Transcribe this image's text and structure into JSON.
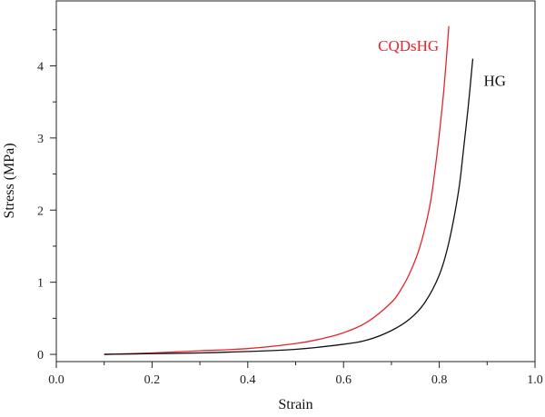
{
  "chart_data": {
    "type": "line",
    "title": "",
    "xlabel": "Strain",
    "ylabel": "Stress (MPa)",
    "xlim": [
      0.0,
      1.0
    ],
    "ylim": [
      -0.1,
      4.9
    ],
    "xticks": [
      "0.0",
      "0.2",
      "0.4",
      "0.6",
      "0.8",
      "1.0"
    ],
    "yticks": [
      "0",
      "1",
      "2",
      "3",
      "4"
    ],
    "grid": false,
    "legend": "inline labels at curve ends",
    "series": [
      {
        "name": "CQDsHG",
        "color": "#e8242b",
        "x": [
          0.1,
          0.2,
          0.3,
          0.4,
          0.5,
          0.55,
          0.6,
          0.65,
          0.7,
          0.72,
          0.74,
          0.76,
          0.78,
          0.79,
          0.8,
          0.81,
          0.82
        ],
        "y": [
          0.0,
          0.02,
          0.05,
          0.08,
          0.15,
          0.21,
          0.3,
          0.45,
          0.72,
          0.9,
          1.15,
          1.5,
          2.05,
          2.5,
          3.05,
          3.7,
          4.55
        ]
      },
      {
        "name": "HG",
        "color": "#111111",
        "x": [
          0.1,
          0.2,
          0.3,
          0.4,
          0.5,
          0.6,
          0.65,
          0.7,
          0.74,
          0.77,
          0.8,
          0.82,
          0.84,
          0.85,
          0.86,
          0.87
        ],
        "y": [
          0.0,
          0.01,
          0.02,
          0.04,
          0.07,
          0.14,
          0.2,
          0.33,
          0.5,
          0.72,
          1.1,
          1.55,
          2.25,
          2.8,
          3.4,
          4.1
        ]
      }
    ],
    "annotations": [
      {
        "text": "CQDsHG",
        "color": "#e8242b"
      },
      {
        "text": "HG",
        "color": "#111111"
      }
    ]
  }
}
